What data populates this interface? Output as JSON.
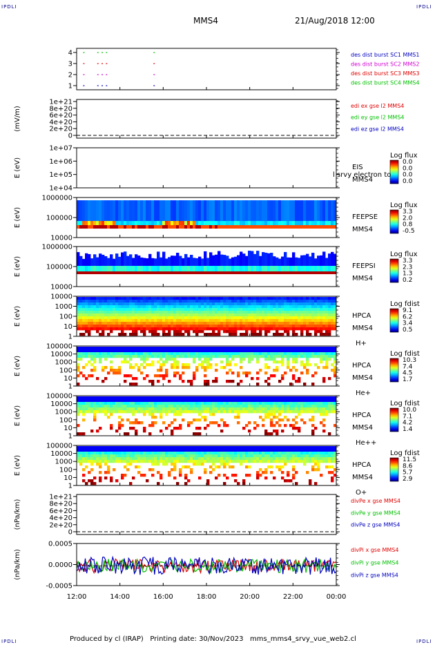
{
  "corners": {
    "label": "IPDLI"
  },
  "header": {
    "spacecraft": "MMS4",
    "datetime": "21/Aug/2018 12:00"
  },
  "footer": {
    "text": "Produced by cl (IRAP)   Printing date: 30/Nov/2023   mms_mms4_srvy_vue_web2.cl"
  },
  "x_axis": {
    "ticks": [
      "12:00",
      "14:00",
      "16:00",
      "18:00",
      "20:00",
      "22:00",
      "00:00"
    ]
  },
  "colors": {
    "red": "#e00000",
    "green": "#00c000",
    "blue": "#0000c0",
    "magenta": "#d000d0",
    "orange": "#ff8c00"
  },
  "chart_data": [
    {
      "type": "scatter",
      "yticks": [
        "1",
        "2",
        "3",
        "4"
      ],
      "legend": [
        {
          "name": "des dist burst SC1 MMS1",
          "color": "#0000c0"
        },
        {
          "name": "des dist burst SC2 MMS2",
          "color": "#d000d0"
        },
        {
          "name": "des dist burst SC3 MMS3",
          "color": "#e00000"
        },
        {
          "name": "des dist burst SC4 MMS4",
          "color": "#00c000"
        }
      ],
      "marks_x": [
        12.3,
        12.95,
        13.15,
        13.35,
        15.55
      ]
    },
    {
      "type": "line",
      "ylabel": "(mV/m)",
      "yticks": [
        "1e+21",
        "8e+20",
        "6e+20",
        "4e+20",
        "2e+20",
        "0"
      ],
      "legend": [
        {
          "name": "edi ex gse l2 MMS4",
          "color": "#e00000"
        },
        {
          "name": "edi ey gse l2 MMS4",
          "color": "#00c000"
        },
        {
          "name": "edi ez gse l2 MMS4",
          "color": "#0000c0"
        }
      ]
    },
    {
      "type": "heatmap",
      "ylabel": "E (eV)",
      "yticks": [
        "1e+07",
        "1e+06",
        "1e+05",
        "1e+04"
      ],
      "labels": [
        "EIS",
        "MMS4"
      ],
      "overlay": "l srvy electron to",
      "colorbar": {
        "title": "Log flux",
        "ticks": [
          "0.0",
          "0.0",
          "0.0",
          "0.0"
        ]
      }
    },
    {
      "type": "heatmap",
      "ylabel": "E (eV)",
      "yticks": [
        "1000000",
        "100000",
        "10000"
      ],
      "labels": [
        "FEEPSE",
        "MMS4"
      ],
      "colorbar": {
        "title": "Log flux",
        "ticks": [
          "3.3",
          "2.0",
          "0.8",
          "-0.5"
        ]
      }
    },
    {
      "type": "heatmap",
      "ylabel": "E (eV)",
      "yticks": [
        "1000000",
        "100000",
        "10000"
      ],
      "labels": [
        "FEEPSI",
        "MMS4"
      ],
      "colorbar": {
        "title": "Log flux",
        "ticks": [
          "3.3",
          "2.3",
          "1.3",
          "0.2"
        ]
      }
    },
    {
      "type": "heatmap",
      "ylabel": "E (eV)",
      "yticks": [
        "10000",
        "1000",
        "100",
        "10",
        "1"
      ],
      "labels": [
        "HPCA",
        "MMS4",
        "H+"
      ],
      "colorbar": {
        "title": "Log fdist",
        "ticks": [
          "9.1",
          "6.2",
          "3.4",
          "0.5"
        ]
      }
    },
    {
      "type": "heatmap",
      "ylabel": "E (eV)",
      "yticks": [
        "100000",
        "10000",
        "1000",
        "100",
        "10",
        "1"
      ],
      "labels": [
        "HPCA",
        "MMS4",
        "He+"
      ],
      "colorbar": {
        "title": "Log fdist",
        "ticks": [
          "10.3",
          "7.4",
          "4.5",
          "1.7"
        ]
      }
    },
    {
      "type": "heatmap",
      "ylabel": "E (eV)",
      "yticks": [
        "100000",
        "10000",
        "1000",
        "100",
        "10",
        "1"
      ],
      "labels": [
        "HPCA",
        "MMS4",
        "He++"
      ],
      "colorbar": {
        "title": "Log fdist",
        "ticks": [
          "10.0",
          "7.1",
          "4.2",
          "1.4"
        ]
      }
    },
    {
      "type": "heatmap",
      "ylabel": "E (eV)",
      "yticks": [
        "100000",
        "10000",
        "1000",
        "100",
        "10",
        "1"
      ],
      "labels": [
        "HPCA",
        "MMS4",
        "O+"
      ],
      "colorbar": {
        "title": "Log fdist",
        "ticks": [
          "11.5",
          "8.6",
          "5.7",
          "2.9"
        ]
      }
    },
    {
      "type": "line",
      "ylabel": "(nPa/km)",
      "yticks": [
        "1e+21",
        "8e+20",
        "6e+20",
        "4e+20",
        "2e+20",
        "0"
      ],
      "legend": [
        {
          "name": "divPe x gse MMS4",
          "color": "#e00000"
        },
        {
          "name": "divPe y gse MMS4",
          "color": "#00c000"
        },
        {
          "name": "divPe z gse MMS4",
          "color": "#0000c0"
        }
      ]
    },
    {
      "type": "line",
      "ylabel": "(nPa/km)",
      "yticks": [
        "0.0005",
        "0.0000",
        "-0.0005"
      ],
      "ylim": [
        -0.0007,
        0.0007
      ],
      "legend": [
        {
          "name": "divPi x gse MMS4",
          "color": "#e00000"
        },
        {
          "name": "divPi y gse MMS4",
          "color": "#00c000"
        },
        {
          "name": "divPi z gse MMS4",
          "color": "#0000c0"
        }
      ]
    }
  ]
}
